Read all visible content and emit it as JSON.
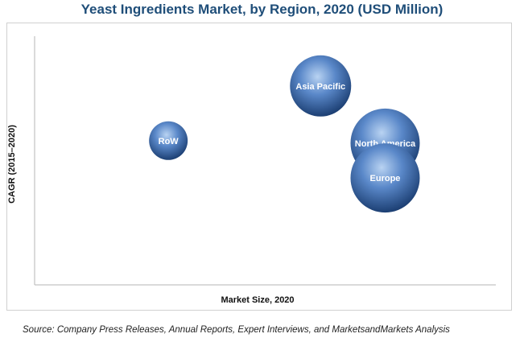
{
  "chart_data": {
    "type": "scatter",
    "title": "Yeast Ingredients Market, by Region, 2020 (USD Million)",
    "xlabel": "Market Size, 2020",
    "ylabel": "CAGR (2015–2020)",
    "source": "Source: Company Press Releases, Annual Reports, Expert Interviews, and MarketsandMarkets Analysis",
    "grid": false,
    "axis_ticks_shown": false,
    "xlim": [
      0,
      100
    ],
    "ylim": [
      0,
      100
    ],
    "bubbles": [
      {
        "label": "RoW",
        "x": 29,
        "y": 58,
        "size": 24
      },
      {
        "label": "Asia Pacific",
        "x": 62,
        "y": 80,
        "size": 38
      },
      {
        "label": "North America",
        "x": 76,
        "y": 57,
        "size": 43
      },
      {
        "label": "Europe",
        "x": 76,
        "y": 43,
        "size": 43
      }
    ],
    "colors": {
      "bubble_light": "#9fc0e8",
      "bubble_mid": "#4f7fc4",
      "bubble_dark": "#1c3f73",
      "title": "#1f4e79"
    }
  }
}
